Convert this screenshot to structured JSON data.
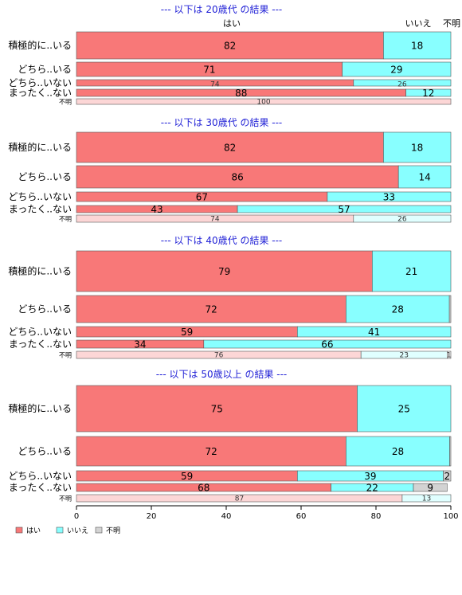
{
  "chart_data": {
    "type": "bar",
    "orientation": "horizontal",
    "stacked": true,
    "percent": true,
    "xlim": [
      0,
      100
    ],
    "xticks": [
      0,
      20,
      40,
      60,
      80,
      100
    ],
    "colors": {
      "はい": "#f87878",
      "いいえ": "#88ffff",
      "不明": "#d3d3d3",
      "不明_row": [
        "#fcd6d6",
        "#e0ffff",
        "#eeeeee"
      ]
    },
    "column_labels": [
      "はい",
      "いいえ",
      "不明"
    ],
    "legend": [
      {
        "name": "はい",
        "color": "#f87878"
      },
      {
        "name": "いいえ",
        "color": "#88ffff"
      },
      {
        "name": "不明",
        "color": "#d3d3d3"
      }
    ],
    "legend_position": "bottom-left",
    "panels": [
      {
        "title": "--- 以下は 20歳代 の結果 ---",
        "rows": [
          {
            "label": "積極的に..いる",
            "values": [
              82,
              18,
              0
            ],
            "shown": [
              "82",
              "18",
              ""
            ]
          },
          {
            "label": "どちら..いる",
            "values": [
              71,
              29,
              0
            ],
            "shown": [
              "71",
              "29",
              ""
            ]
          },
          {
            "label": "どちら..いない",
            "values": [
              74,
              26,
              0
            ],
            "shown": [
              "74",
              "26",
              ""
            ]
          },
          {
            "label": "まったく..ない",
            "values": [
              88,
              12,
              0
            ],
            "shown": [
              "88",
              "12",
              ""
            ]
          },
          {
            "label": "不明",
            "values": [
              100,
              0,
              0
            ],
            "shown": [
              "100",
              "",
              ""
            ]
          }
        ]
      },
      {
        "title": "--- 以下は 30歳代 の結果 ---",
        "rows": [
          {
            "label": "積極的に..いる",
            "values": [
              82,
              18,
              0
            ],
            "shown": [
              "82",
              "18",
              ""
            ]
          },
          {
            "label": "どちら..いる",
            "values": [
              86,
              14,
              0
            ],
            "shown": [
              "86",
              "14",
              ""
            ]
          },
          {
            "label": "どちら..いない",
            "values": [
              67,
              33,
              0
            ],
            "shown": [
              "67",
              "33",
              ""
            ]
          },
          {
            "label": "まったく..ない",
            "values": [
              43,
              57,
              0
            ],
            "shown": [
              "43",
              "57",
              ""
            ]
          },
          {
            "label": "不明",
            "values": [
              74,
              26,
              0
            ],
            "shown": [
              "74",
              "26",
              ""
            ]
          }
        ]
      },
      {
        "title": "--- 以下は 40歳代 の結果 ---",
        "rows": [
          {
            "label": "積極的に..いる",
            "values": [
              79,
              21,
              0
            ],
            "shown": [
              "79",
              "21",
              ""
            ]
          },
          {
            "label": "どちら..いる",
            "values": [
              72,
              27.6,
              0.4
            ],
            "shown": [
              "72",
              "28",
              ""
            ]
          },
          {
            "label": "どちら..いない",
            "values": [
              59,
              41,
              0
            ],
            "shown": [
              "59",
              "41",
              ""
            ]
          },
          {
            "label": "まったく..ない",
            "values": [
              34,
              66,
              0
            ],
            "shown": [
              "34",
              "66",
              ""
            ]
          },
          {
            "label": "不明",
            "values": [
              76,
              23,
              1
            ],
            "shown": [
              "76",
              "23",
              "1"
            ]
          }
        ]
      },
      {
        "title": "--- 以下は 50歳以上 の結果 ---",
        "rows": [
          {
            "label": "積極的に..いる",
            "values": [
              75,
              25,
              0
            ],
            "shown": [
              "75",
              "25",
              ""
            ]
          },
          {
            "label": "どちら..いる",
            "values": [
              72,
              27.7,
              0.3
            ],
            "shown": [
              "72",
              "28",
              ""
            ]
          },
          {
            "label": "どちら..いない",
            "values": [
              59,
              39,
              2
            ],
            "shown": [
              "59",
              "39",
              "2"
            ]
          },
          {
            "label": "まったく..ない",
            "values": [
              68,
              22,
              9
            ],
            "shown": [
              "68",
              "22",
              "9"
            ]
          },
          {
            "label": "不明",
            "values": [
              87,
              13,
              0
            ],
            "shown": [
              "87",
              "13",
              ""
            ]
          }
        ]
      }
    ]
  }
}
